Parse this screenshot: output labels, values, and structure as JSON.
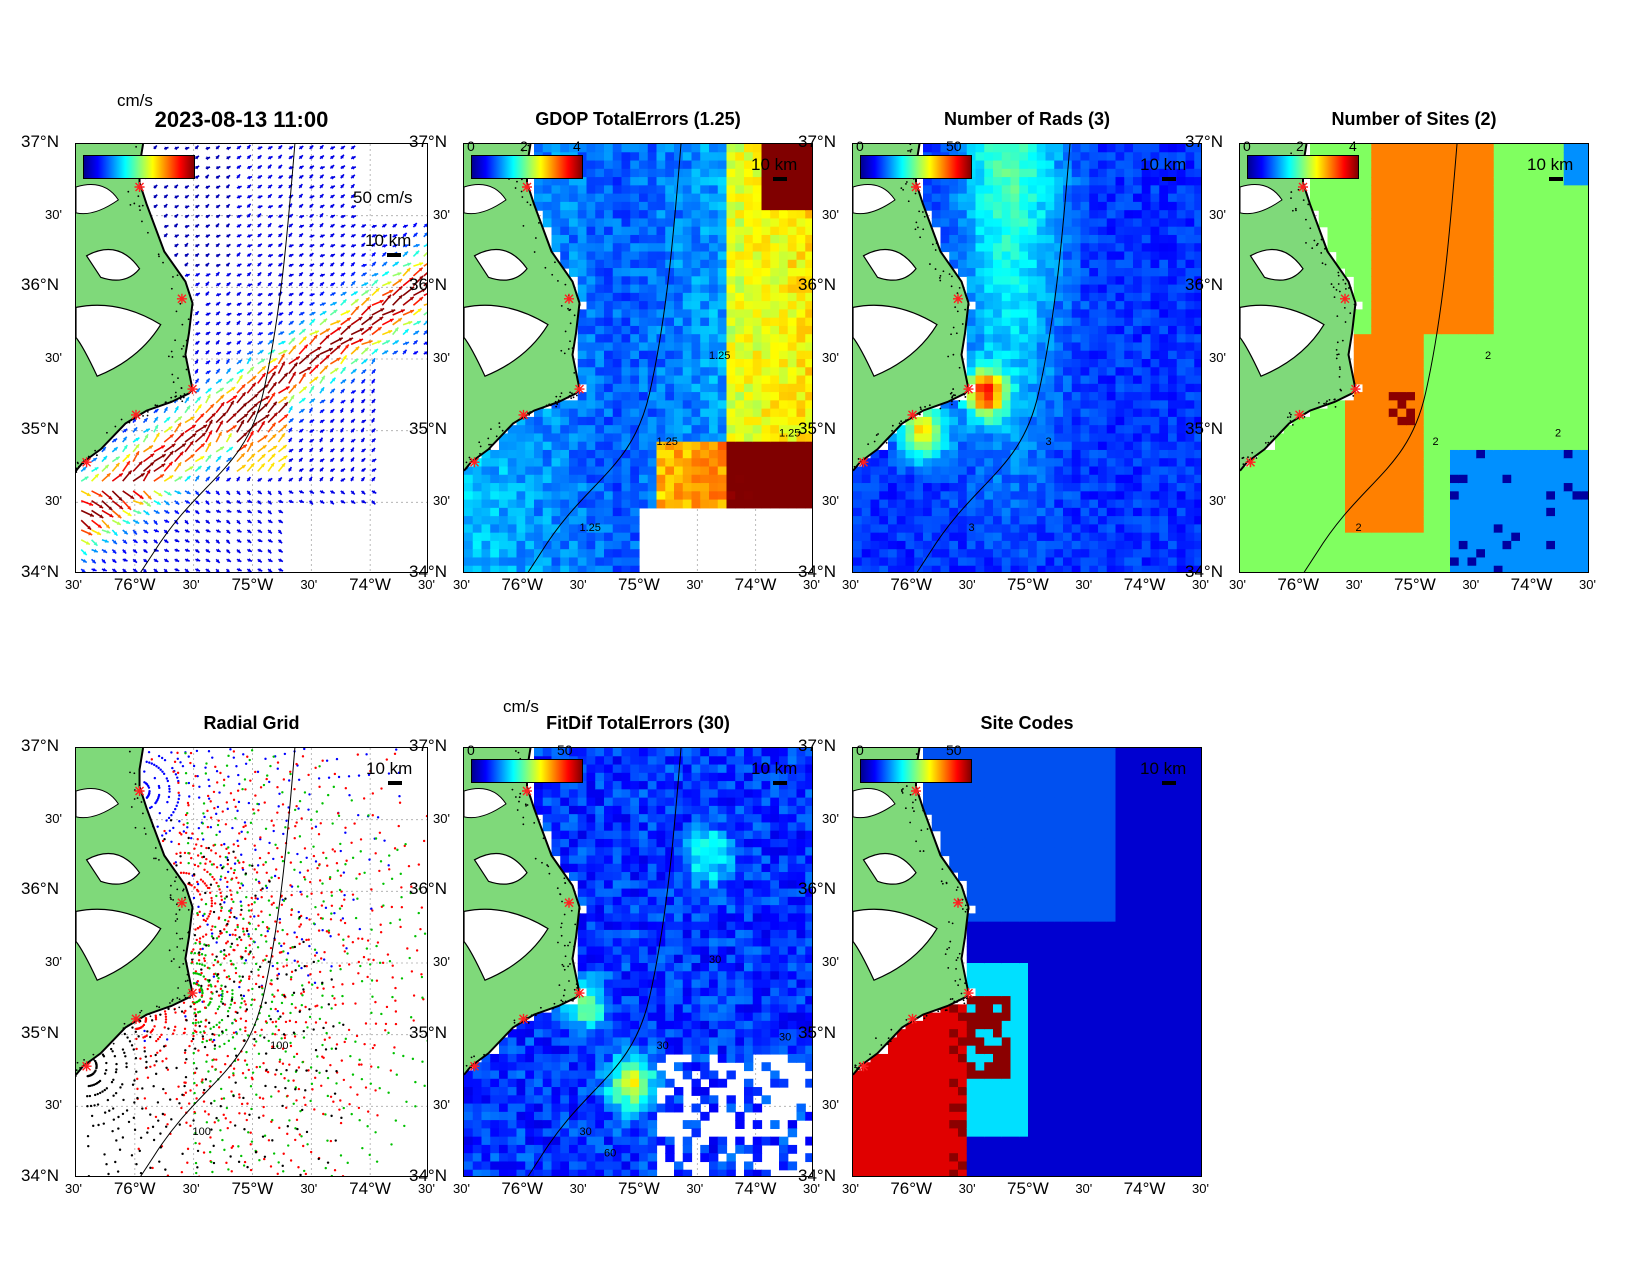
{
  "panels": [
    {
      "id": "velocity",
      "title": "2023-08-13 11:00",
      "title_big": true,
      "cbar_ticks": [],
      "unit": "cm/s",
      "scale_label": "10 km",
      "ref_vector": "50 cm/s",
      "mode": "vectors"
    },
    {
      "id": "gdop",
      "title": "GDOP TotalErrors (1.25)",
      "cbar_ticks": [
        "0",
        "2",
        "4"
      ],
      "scale_label": "10 km",
      "contour_labels": [
        "1.25",
        "1.25",
        "1.25",
        "1.25"
      ],
      "mode": "gdop"
    },
    {
      "id": "nrads",
      "title": "Number of Rads (3)",
      "cbar_ticks": [
        "0",
        "50"
      ],
      "scale_label": "10 km",
      "contour_labels": [
        "3",
        "3"
      ],
      "mode": "nrads"
    },
    {
      "id": "nsites",
      "title": "Number of Sites (2)",
      "cbar_ticks": [
        "0",
        "2",
        "4"
      ],
      "scale_label": "10 km",
      "contour_labels": [
        "2",
        "2",
        "2",
        "2"
      ],
      "mode": "nsites"
    },
    {
      "id": "radial",
      "title": "Radial Grid",
      "cbar_ticks": [],
      "scale_label": "10 km",
      "contour_labels": [
        "100",
        "100"
      ],
      "mode": "radial"
    },
    {
      "id": "fitdif",
      "title": "FitDif TotalErrors (30)",
      "cbar_ticks": [
        "0",
        "50"
      ],
      "unit": "cm/s",
      "scale_label": "10 km",
      "contour_labels": [
        "30",
        "30",
        "30",
        "30",
        "60"
      ],
      "mode": "fitdif"
    },
    {
      "id": "sitecodes",
      "title": "Site Codes",
      "cbar_ticks": [
        "0",
        "50"
      ],
      "scale_label": "10 km",
      "mode": "sites"
    }
  ],
  "axes": {
    "lat_labels": [
      "37°N",
      "30'",
      "36°N",
      "30'",
      "35°N",
      "30'",
      "34°N"
    ],
    "lon_labels": [
      "30'",
      "76°W",
      "30'",
      "75°W",
      "30'",
      "74°W",
      "30'"
    ]
  },
  "colors": {
    "land": "#7fd97a",
    "coast": "#000000",
    "station": "#ff2020",
    "contour": "#000000"
  }
}
